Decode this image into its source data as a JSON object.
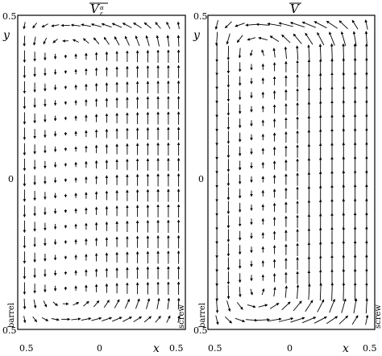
{
  "figure": {
    "panels": [
      {
        "id": "left",
        "title_symbol": "V",
        "title_sub": "α",
        "title_sub2": "ε",
        "x_label": "x",
        "y_label": "y",
        "side_label_left": "barrel",
        "side_label_right": "",
        "x_ticks": [
          "0.5",
          "0",
          "0.5"
        ],
        "y_ticks": [
          "0.5",
          "0",
          "0.5"
        ]
      },
      {
        "id": "right",
        "title_symbol": "V",
        "title_sub": "",
        "title_sub2": "",
        "x_label": "x",
        "y_label": "y",
        "side_label_left": "barrel",
        "side_label_right": "screw",
        "x_ticks": [
          "0.5",
          "0",
          "0.5"
        ],
        "y_ticks": [
          "0.5",
          "0",
          "0.5"
        ]
      }
    ],
    "left_mid_label": "screw"
  }
}
